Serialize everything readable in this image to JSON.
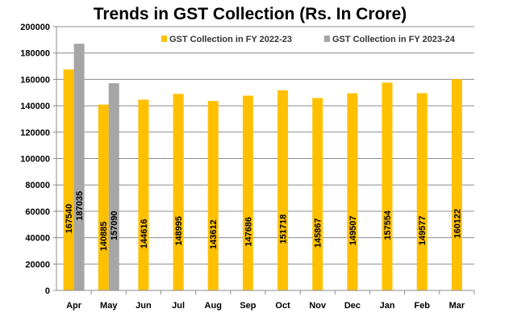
{
  "chart_data": {
    "type": "bar",
    "title": "Trends in GST Collection (Rs. In Crore)",
    "xlabel": "",
    "ylabel": "",
    "ylim": [
      0,
      200000
    ],
    "yticks": [
      0,
      20000,
      40000,
      60000,
      80000,
      100000,
      120000,
      140000,
      160000,
      180000,
      200000
    ],
    "grid": true,
    "legend_position": "top-right",
    "categories": [
      "Apr",
      "May",
      "Jun",
      "Jul",
      "Aug",
      "Sep",
      "Oct",
      "Nov",
      "Dec",
      "Jan",
      "Feb",
      "Mar"
    ],
    "series": [
      {
        "name": "GST Collection in FY 2022-23",
        "color": "#FFC000",
        "values": [
          167540,
          140885,
          144616,
          148995,
          143612,
          147686,
          151718,
          145867,
          149507,
          157554,
          149577,
          160122
        ]
      },
      {
        "name": "GST Collection in FY 2023-24",
        "color": "#A6A6A6",
        "values": [
          187035,
          157090,
          null,
          null,
          null,
          null,
          null,
          null,
          null,
          null,
          null,
          null
        ]
      }
    ]
  }
}
